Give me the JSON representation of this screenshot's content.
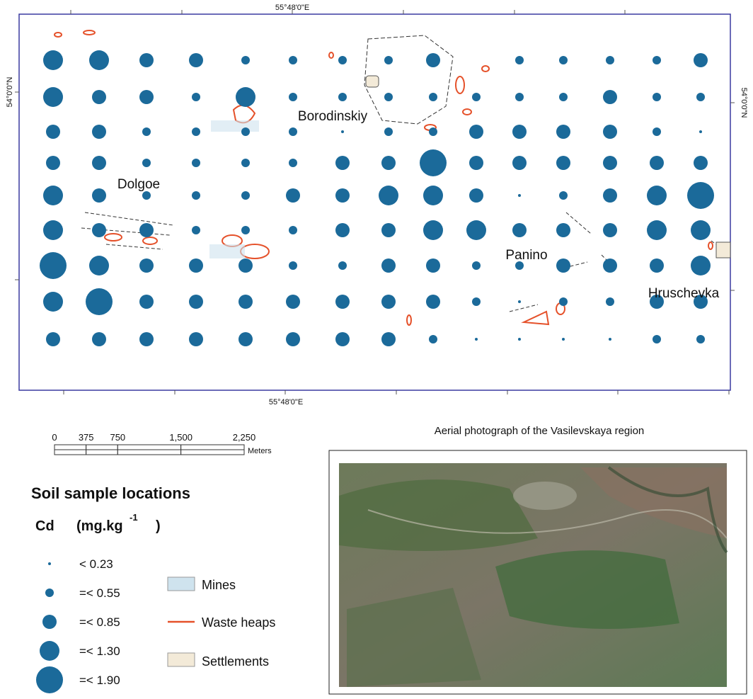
{
  "map": {
    "graticule": {
      "top_lon": "55°48'0\"E",
      "bottom_lon": "55°48'0\"E",
      "left_lat": "54°0'0\"N",
      "right_lat": "54°0'0\"N"
    },
    "places": [
      "Borodinskiy",
      "Dolgoe",
      "Panino",
      "Hruschevka"
    ],
    "samples": [
      [
        3,
        3,
        2,
        2,
        1,
        1,
        1,
        1,
        2,
        null,
        1,
        1,
        1,
        1,
        2
      ],
      [
        3,
        2,
        2,
        1,
        3,
        1,
        1,
        1,
        1,
        1,
        1,
        1,
        2,
        1,
        1
      ],
      [
        2,
        2,
        1,
        1,
        1,
        1,
        0,
        1,
        1,
        2,
        2,
        2,
        2,
        1,
        0
      ],
      [
        2,
        2,
        1,
        1,
        1,
        1,
        2,
        2,
        4,
        2,
        2,
        2,
        2,
        2,
        2
      ],
      [
        3,
        2,
        1,
        1,
        1,
        2,
        2,
        3,
        3,
        2,
        0,
        1,
        2,
        3,
        4
      ],
      [
        3,
        2,
        2,
        1,
        1,
        1,
        2,
        2,
        3,
        3,
        2,
        2,
        2,
        3,
        3
      ],
      [
        4,
        3,
        2,
        2,
        2,
        1,
        1,
        2,
        2,
        1,
        1,
        2,
        2,
        2,
        3
      ],
      [
        3,
        4,
        2,
        2,
        2,
        2,
        2,
        2,
        2,
        1,
        0,
        1,
        1,
        2,
        2
      ],
      [
        2,
        2,
        2,
        2,
        2,
        2,
        2,
        2,
        1,
        0,
        0,
        0,
        0,
        1,
        1
      ]
    ]
  },
  "scale_bar": {
    "ticks": [
      0,
      375,
      750,
      {
        "value": 1500,
        "label": "1,500"
      },
      {
        "value": 2250,
        "label": "2,250"
      }
    ],
    "unit": "Meters"
  },
  "legend": {
    "title": "Soil sample locations",
    "element": "Cd",
    "unit": "(mg.kg",
    "unit_exponent": "-1",
    "unit_close": ")",
    "classes": [
      "< 0.23",
      "=< 0.55",
      "=< 0.85",
      "=< 1.30",
      "=< 1.90"
    ],
    "features": [
      "Mines",
      "Waste heaps",
      "Settlements"
    ]
  },
  "photo": {
    "caption": "Aerial photograph of the Vasilevskaya region"
  }
}
